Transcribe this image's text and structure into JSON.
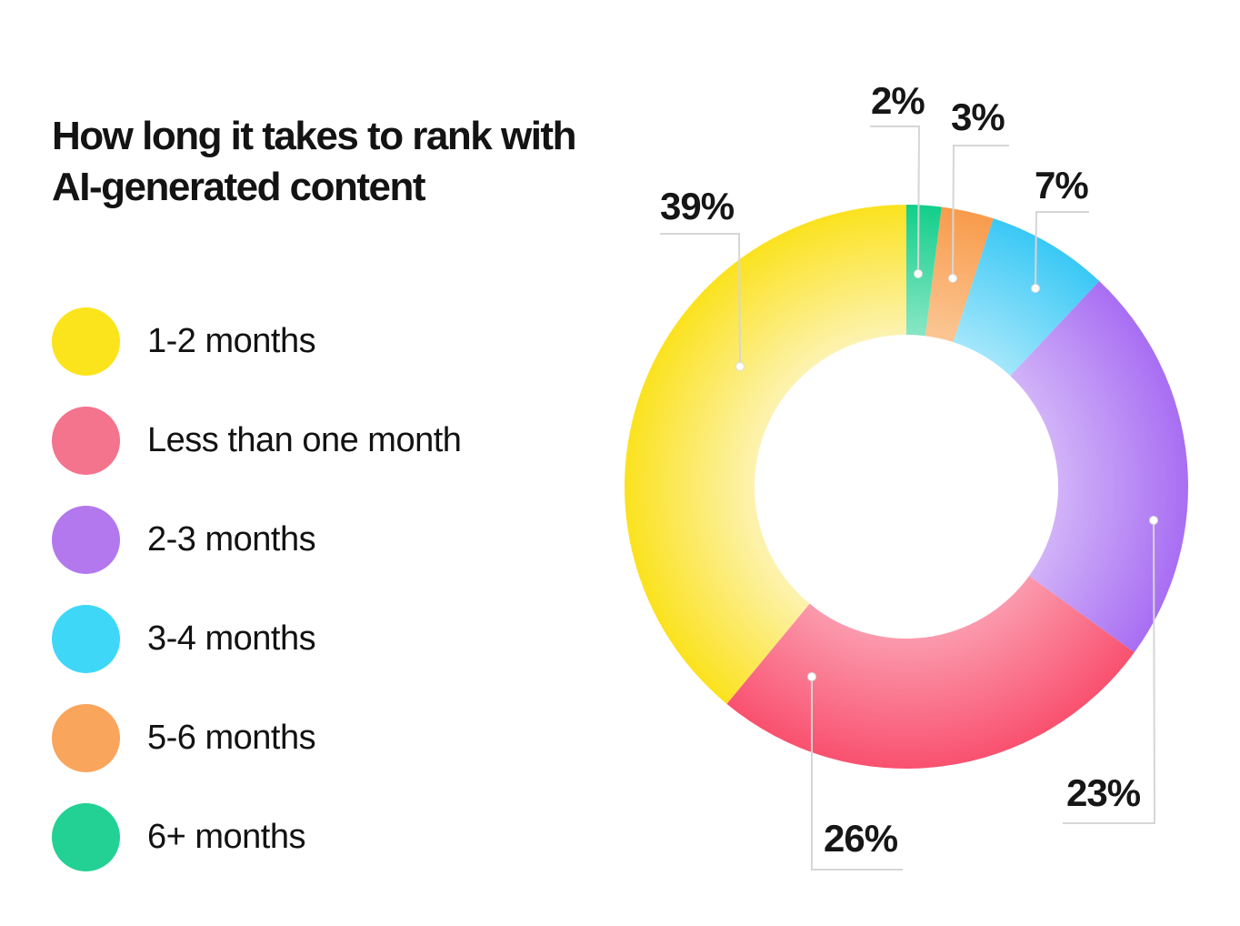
{
  "background_color": "#FFFFFF",
  "styles": {
    "leader_line_color": "#D6D6D6",
    "leader_dot_fill": "#FFFFFF",
    "leader_dot_stroke": "#DCDCDC",
    "title_color": "#131313",
    "label_color": "#161616"
  },
  "chart_data": {
    "type": "pie",
    "subtype": "donut",
    "title": "How long it takes to rank with AI-generated content",
    "start_angle_deg": 0,
    "direction": "clockwise",
    "hole_ratio": 0.54,
    "slices": [
      {
        "label": "6+ months",
        "value": 2,
        "display": "2%",
        "color": "#12CE8B",
        "color_inner": "#8BE7C6"
      },
      {
        "label": "5-6 months",
        "value": 3,
        "display": "3%",
        "color": "#F89B4B",
        "color_inner": "#FBC795"
      },
      {
        "label": "3-4 months",
        "value": 7,
        "display": "7%",
        "color": "#3AC8F5",
        "color_inner": "#A5E7FB"
      },
      {
        "label": "2-3 months",
        "value": 23,
        "display": "23%",
        "color": "#A86EF3",
        "color_inner": "#D2B4F8"
      },
      {
        "label": "Less than one month",
        "value": 26,
        "display": "26%",
        "color": "#F9516F",
        "color_inner": "#FB9BAE"
      },
      {
        "label": "1-2 months",
        "value": 39,
        "display": "39%",
        "color": "#FBE21E",
        "color_inner": "#FDF3B3"
      }
    ],
    "legend": [
      {
        "label": "1-2 months",
        "color": "#FBE41C"
      },
      {
        "label": "Less than one month",
        "color": "#F4738D"
      },
      {
        "label": "2-3 months",
        "color": "#B377EE"
      },
      {
        "label": "3-4 months",
        "color": "#3ED7F8"
      },
      {
        "label": "5-6 months",
        "color": "#F9A55C"
      },
      {
        "label": "6+ months",
        "color": "#22D193"
      }
    ]
  }
}
